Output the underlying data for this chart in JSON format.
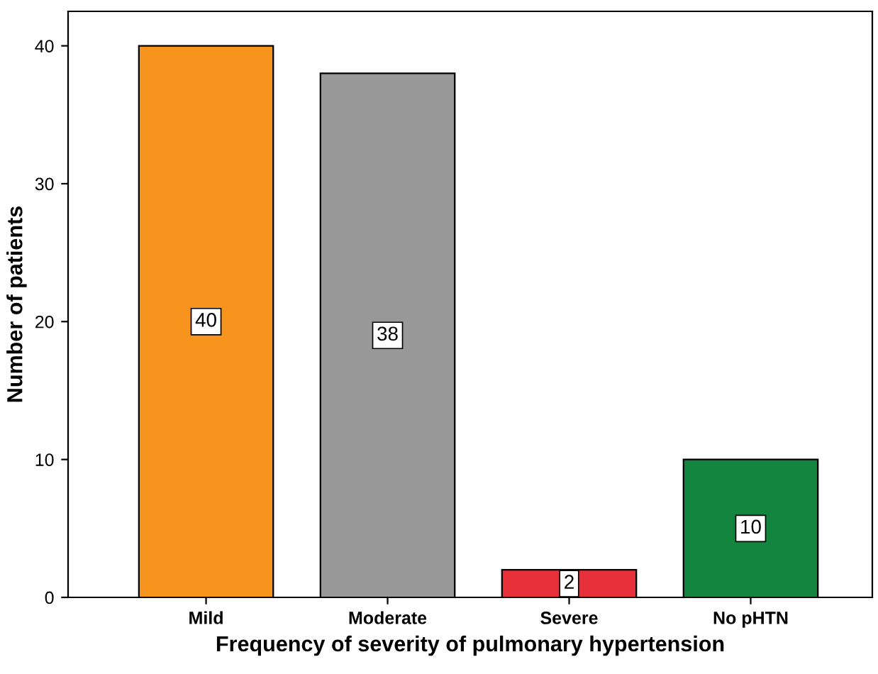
{
  "chart_data": {
    "type": "bar",
    "xlabel": "Frequency of severity of pulmonary hypertension",
    "ylabel": "Number of patients",
    "categories": [
      "Mild",
      "Moderate",
      "Severe",
      "No pHTN"
    ],
    "values": [
      40,
      38,
      2,
      10
    ],
    "colors": [
      "#f7941d",
      "#999999",
      "#e8303a",
      "#13853f"
    ],
    "ylim": [
      0,
      42.5
    ],
    "yticks": [
      0,
      10,
      20,
      30,
      40
    ],
    "grid": false,
    "data_labels": true
  }
}
